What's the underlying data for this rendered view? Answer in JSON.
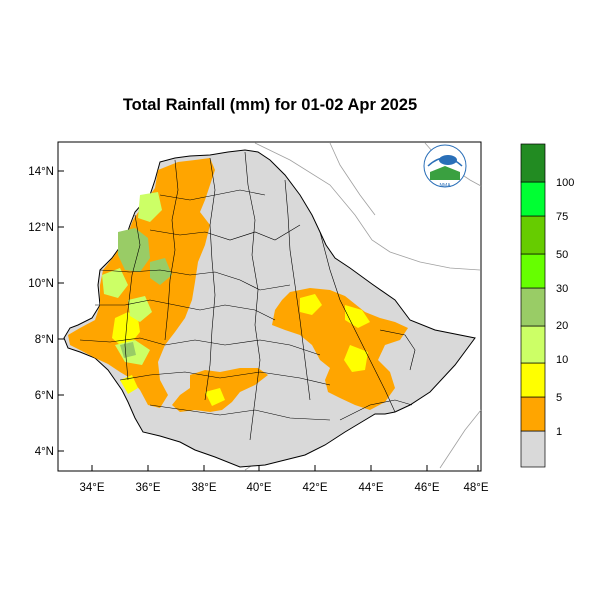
{
  "title": "Total Rainfall (mm) for 01-02 Apr 2025",
  "map": {
    "lon_range": [
      33,
      48
    ],
    "lat_range": [
      3.2,
      15
    ],
    "y_ticks": [
      "14°N",
      "12°N",
      "10°N",
      "8°N",
      "6°N",
      "4°N"
    ],
    "x_ticks": [
      "34°E",
      "36°E",
      "38°E",
      "40°E",
      "42°E",
      "44°E",
      "46°E",
      "48°E"
    ],
    "land_color": "#d9d9d9",
    "logo_label": "NMA"
  },
  "colorbar": {
    "levels": [
      "1",
      "5",
      "10",
      "20",
      "30",
      "50",
      "75",
      "100"
    ],
    "colors": [
      "#d9d9d9",
      "#ffa500",
      "#ffff00",
      "#ccff66",
      "#99cc66",
      "#66ff00",
      "#66cc00",
      "#00ff33",
      "#00cc33",
      "#228b22"
    ]
  }
}
